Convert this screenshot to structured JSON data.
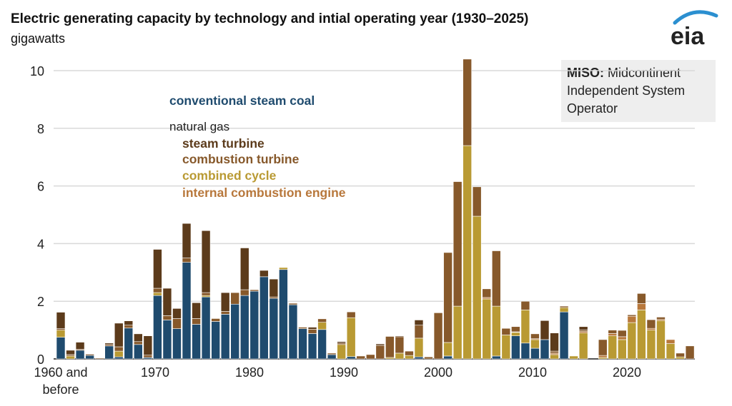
{
  "header": {
    "title": "Electric generating capacity by technology and intial operating year (1930–2025)",
    "subtitle": "gigawatts",
    "logo_text": "eia"
  },
  "annotation": {
    "bold": "MISO:",
    "text": " Midcontinent Independent System Operator"
  },
  "chart_data": {
    "type": "bar",
    "stacked": true,
    "title": "Electric generating capacity by technology and intial operating year (1930–2025)",
    "ylabel": "gigawatts",
    "ylim": [
      0,
      10.4
    ],
    "yticks": [
      0,
      2,
      4,
      6,
      8,
      10
    ],
    "xtick_labels": [
      {
        "year": 1960,
        "line1": "1960 and",
        "line2": "before"
      },
      {
        "year": 1970,
        "line1": "1970"
      },
      {
        "year": 1980,
        "line1": "1980"
      },
      {
        "year": 1990,
        "line1": "1990"
      },
      {
        "year": 2000,
        "line1": "2000"
      },
      {
        "year": 2010,
        "line1": "2010"
      },
      {
        "year": 2020,
        "line1": "2020"
      }
    ],
    "grid": true,
    "legend_group_label": "natural gas",
    "years": [
      1960,
      1961,
      1962,
      1963,
      1964,
      1965,
      1966,
      1967,
      1968,
      1969,
      1970,
      1971,
      1972,
      1973,
      1974,
      1975,
      1976,
      1977,
      1978,
      1979,
      1980,
      1981,
      1982,
      1983,
      1984,
      1985,
      1986,
      1987,
      1988,
      1989,
      1990,
      1991,
      1992,
      1993,
      1994,
      1995,
      1996,
      1997,
      1998,
      1999,
      2000,
      2001,
      2002,
      2003,
      2004,
      2005,
      2006,
      2007,
      2008,
      2009,
      2010,
      2011,
      2012,
      2013,
      2014,
      2015,
      2016,
      2017,
      2018,
      2019,
      2020,
      2021,
      2022,
      2023,
      2024,
      2025
    ],
    "series": [
      {
        "key": "coal",
        "name": "conventional steam coal",
        "color": "#1f4b6e",
        "values": [
          0.75,
          0,
          0.3,
          0.12,
          0,
          0.45,
          0.07,
          1.07,
          0.5,
          0.05,
          2.2,
          1.35,
          1.05,
          3.35,
          1.2,
          2.15,
          1.3,
          1.55,
          1.9,
          2.2,
          2.35,
          2.85,
          2.1,
          3.1,
          1.88,
          1.05,
          0.88,
          1.02,
          0.15,
          0,
          0.08,
          0,
          0,
          0,
          0,
          0,
          0,
          0.07,
          0,
          0,
          0.1,
          0,
          0,
          0,
          0,
          0.1,
          0,
          0.8,
          0.55,
          0.37,
          0.67,
          0,
          1.63,
          0,
          0,
          0,
          0,
          0,
          0,
          0,
          0,
          0,
          0,
          0,
          0,
          0
        ]
      },
      {
        "key": "cc",
        "name": "combined cycle",
        "color": "#b99a33",
        "values": [
          0.25,
          0.1,
          0,
          0,
          0,
          0,
          0.2,
          0,
          0,
          0,
          0.1,
          0,
          0,
          0,
          0,
          0.05,
          0,
          0,
          0,
          0,
          0,
          0,
          0,
          0.07,
          0,
          0,
          0,
          0.25,
          0,
          0.5,
          1.35,
          0,
          0,
          0,
          0.05,
          0.2,
          0.12,
          0.65,
          0,
          0,
          0.47,
          1.83,
          7.4,
          4.95,
          2.08,
          1.73,
          0.83,
          0.12,
          1.15,
          0.3,
          0,
          0.15,
          0.15,
          0.1,
          0.9,
          0,
          0.05,
          0.8,
          0.67,
          1.26,
          1.7,
          1.0,
          1.33,
          0.53,
          0.07,
          0
        ]
      },
      {
        "key": "ice",
        "name": "internal combustion engine",
        "color": "#b8783c",
        "values": [
          0,
          0,
          0,
          0,
          0,
          0,
          0,
          0,
          0,
          0,
          0,
          0,
          0,
          0,
          0,
          0,
          0,
          0,
          0,
          0,
          0,
          0,
          0,
          0,
          0,
          0,
          0,
          0,
          0,
          0,
          0,
          0,
          0,
          0,
          0,
          0,
          0,
          0,
          0,
          0,
          0,
          0,
          0,
          0,
          0.05,
          0,
          0,
          0.02,
          0,
          0.03,
          0,
          0.05,
          0,
          0,
          0.05,
          0,
          0.07,
          0.08,
          0.1,
          0.22,
          0.22,
          0.06,
          0.04,
          0.14,
          0,
          0
        ]
      },
      {
        "key": "ct",
        "name": "combustion turbine",
        "color": "#87592b",
        "values": [
          0.05,
          0.05,
          0.03,
          0.04,
          0.03,
          0.05,
          0.15,
          0.1,
          0.1,
          0.08,
          0.15,
          0.15,
          0.35,
          0.15,
          0.2,
          0.1,
          0.1,
          0.1,
          0.4,
          0.2,
          0.05,
          0,
          0.05,
          0,
          0.05,
          0.05,
          0.15,
          0.12,
          0.05,
          0.05,
          0.2,
          0.1,
          0.15,
          0.47,
          0.73,
          0.57,
          0.15,
          0.45,
          0.07,
          1.6,
          3.12,
          4.32,
          3.0,
          1.02,
          0.3,
          1.92,
          0.23,
          0.18,
          0.3,
          0.17,
          0,
          0.07,
          0.05,
          0,
          0.05,
          0,
          0.55,
          0.12,
          0.22,
          0.05,
          0.35,
          0.3,
          0.08,
          0,
          0.13,
          0.45
        ]
      },
      {
        "key": "st",
        "name": "steam turbine",
        "color": "#5c3b1b",
        "values": [
          0.57,
          0.15,
          0.25,
          0.02,
          0,
          0.05,
          0.82,
          0.15,
          0.27,
          0.67,
          1.35,
          0.95,
          0.35,
          1.2,
          0.55,
          2.15,
          0,
          0.65,
          0,
          1.45,
          0,
          0.22,
          0.62,
          0,
          0,
          0,
          0.07,
          0,
          0,
          0.05,
          0,
          0,
          0,
          0.05,
          0,
          0.03,
          0,
          0.18,
          0,
          0,
          0,
          0,
          0,
          0,
          0,
          0,
          0,
          0,
          0,
          0,
          0.66,
          0.63,
          0,
          0,
          0.12,
          0,
          0,
          0,
          0,
          0,
          0,
          0,
          0,
          0,
          0,
          0
        ]
      }
    ],
    "legend": [
      {
        "key": "coal",
        "label": "conventional steam coal"
      },
      {
        "key": "st",
        "label": "steam turbine"
      },
      {
        "key": "ct",
        "label": "combustion turbine"
      },
      {
        "key": "cc",
        "label": "combined cycle"
      },
      {
        "key": "ice",
        "label": "internal combustion engine"
      }
    ]
  }
}
